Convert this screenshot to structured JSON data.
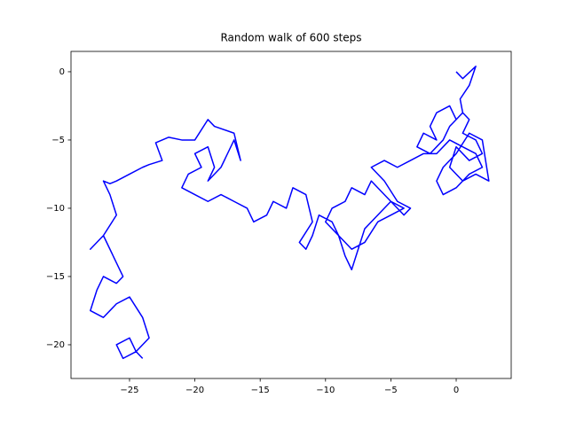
{
  "chart_data": {
    "type": "line",
    "title": "Random walk of 600 steps",
    "series": [
      {
        "color": "#0000ff",
        "x": [
          0,
          0.5,
          1.5,
          1.0,
          0.3,
          0.5,
          0.0,
          -0.5,
          -1.5,
          -2.0,
          -1.5,
          -2.5,
          -3.0,
          -2.0,
          -1.0,
          -0.5,
          0.5,
          1.0,
          0.5,
          1.5,
          2.0,
          1.0,
          0.0,
          -0.5,
          0.5,
          1.5,
          2.5,
          2.0,
          1.0,
          0.0,
          -1.0,
          -1.5,
          -1.0,
          0.0,
          1.0,
          2.0,
          1.5,
          0.5,
          -0.5,
          -1.5,
          -2.5,
          -3.5,
          -4.5,
          -5.5,
          -6.5,
          -5.5,
          -4.5,
          -3.5,
          -4.0,
          -5.0,
          -6.0,
          -6.5,
          -7.0,
          -8.0,
          -8.5,
          -9.5,
          -10.0,
          -9.0,
          -8.0,
          -7.0,
          -6.0,
          -5.0,
          -4.0,
          -5.0,
          -6.0,
          -7.0,
          -7.5,
          -8.0,
          -8.5,
          -9.0,
          -9.5,
          -10.5,
          -11.0,
          -11.5,
          -12.0,
          -11.0,
          -11.5,
          -12.5,
          -13.0,
          -14.0,
          -14.5,
          -15.5,
          -16.0,
          -17.0,
          -18.0,
          -19.0,
          -20.0,
          -21.0,
          -20.5,
          -19.5,
          -20.0,
          -19.0,
          -18.5,
          -19.0,
          -18.0,
          -17.0,
          -16.5,
          -17.0,
          -18.5,
          -19.0,
          -20.0,
          -21.0,
          -22.0,
          -23.0,
          -22.5,
          -23.5,
          -24.0,
          -25.0,
          -26.0,
          -26.5,
          -27.0,
          -26.5,
          -26.0,
          -27.0,
          -28.0,
          -27.0,
          -26.0,
          -25.5,
          -26.0,
          -27.0,
          -27.5,
          -28.0,
          -27.0,
          -26.0,
          -25.0,
          -24.0,
          -23.5,
          -24.5,
          -25.0,
          -26.0,
          -25.5,
          -24.5,
          -24.0
        ],
        "values": [
          0,
          -0.5,
          0.4,
          -1.0,
          -2.0,
          -3.0,
          -3.5,
          -2.5,
          -3.0,
          -4.0,
          -5.0,
          -4.5,
          -5.5,
          -6.0,
          -5.0,
          -4.0,
          -3.0,
          -3.5,
          -4.5,
          -5.0,
          -6.0,
          -6.5,
          -5.5,
          -7.0,
          -8.0,
          -7.5,
          -8.0,
          -5.0,
          -4.5,
          -6.0,
          -7.0,
          -8.0,
          -9.0,
          -8.5,
          -7.5,
          -7.0,
          -6.0,
          -5.5,
          -5.0,
          -6.0,
          -6.0,
          -6.5,
          -7.0,
          -6.5,
          -7.0,
          -8.0,
          -9.5,
          -10.0,
          -10.5,
          -9.5,
          -8.5,
          -8.0,
          -9.0,
          -8.5,
          -9.5,
          -10.0,
          -11.0,
          -12.0,
          -13.0,
          -12.5,
          -11.0,
          -10.5,
          -10.0,
          -9.5,
          -10.5,
          -11.5,
          -13.0,
          -14.5,
          -13.5,
          -12.0,
          -11.0,
          -10.5,
          -12.0,
          -13.0,
          -12.5,
          -11.0,
          -9.0,
          -8.5,
          -10.0,
          -9.5,
          -10.5,
          -11.0,
          -10.0,
          -9.5,
          -9.0,
          -9.5,
          -9.0,
          -8.5,
          -7.5,
          -7.0,
          -6.0,
          -5.5,
          -7.0,
          -8.0,
          -7.0,
          -5.0,
          -6.5,
          -4.5,
          -4.0,
          -3.5,
          -5.0,
          -5.0,
          -4.8,
          -5.2,
          -6.5,
          -6.8,
          -7.0,
          -7.5,
          -8.0,
          -8.2,
          -8.0,
          -9.0,
          -10.5,
          -12.0,
          -13.0,
          -12.0,
          -14.0,
          -15.0,
          -15.5,
          -15.0,
          -16.0,
          -17.5,
          -18.0,
          -17.0,
          -16.5,
          -18.0,
          -19.5,
          -20.5,
          -19.5,
          -20.0,
          -21.0,
          -20.5,
          -21.0
        ]
      }
    ],
    "xlim": [
      -29.48,
      4.21
    ],
    "ylim": [
      -22.47,
      1.49
    ],
    "xticks": [
      {
        "value": -25,
        "label": "−25"
      },
      {
        "value": -20,
        "label": "−20"
      },
      {
        "value": -15,
        "label": "−15"
      },
      {
        "value": -10,
        "label": "−10"
      },
      {
        "value": -5,
        "label": "−5"
      },
      0
    ],
    "yticks": [
      {
        "value": -20,
        "label": "−20"
      },
      {
        "value": -15,
        "label": "−15"
      },
      {
        "value": -10,
        "label": "−10"
      },
      {
        "value": -5,
        "label": "−5"
      },
      0
    ]
  }
}
